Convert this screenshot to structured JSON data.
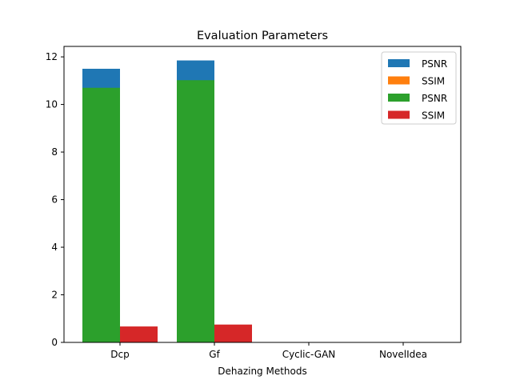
{
  "chart_data": {
    "type": "bar",
    "title": "Evaluation Parameters",
    "xlabel": "Dehazing Methods",
    "ylabel": "",
    "categories": [
      "Dcp",
      "Gf",
      "Cyclic-GAN",
      "NovelIdea"
    ],
    "ylim": [
      0,
      12.44
    ],
    "yticks": [
      0,
      2,
      4,
      6,
      8,
      10,
      12
    ],
    "grid": false,
    "legend_position": "top-right",
    "series": [
      {
        "name": "PSNR",
        "color": "#1f77b4",
        "slot": "left",
        "values": [
          11.5,
          11.85,
          0,
          0
        ]
      },
      {
        "name": "SSIM",
        "color": "#ff7f0e",
        "slot": "right",
        "values": [
          0,
          0,
          0,
          0
        ]
      },
      {
        "name": "PSNR",
        "color": "#2ca02c",
        "slot": "left",
        "values": [
          10.7,
          11.02,
          0,
          0
        ]
      },
      {
        "name": "SSIM",
        "color": "#d62728",
        "slot": "right",
        "values": [
          0.67,
          0.75,
          0,
          0
        ]
      }
    ]
  }
}
